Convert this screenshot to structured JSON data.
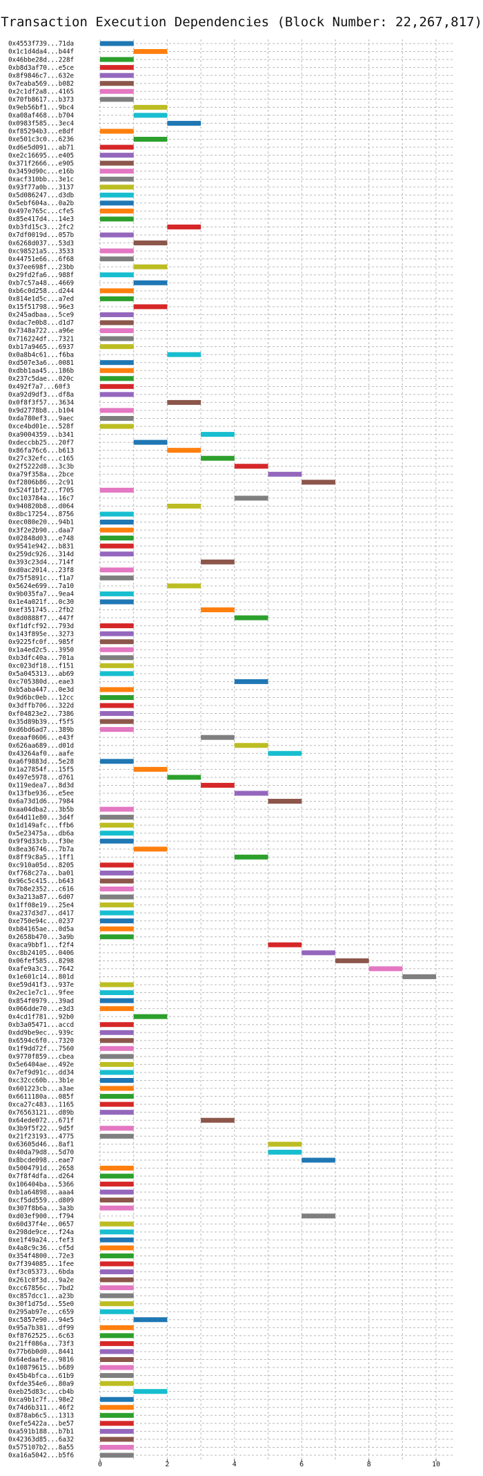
{
  "chart_data": {
    "type": "bar",
    "orientation": "horizontal-gantt",
    "title": "Transaction Execution Dependencies (Block Number: 22,267,817)",
    "xlabel": "",
    "ylabel": "",
    "xlim": [
      0,
      10.5
    ],
    "xticks": [
      0,
      2,
      4,
      6,
      8,
      10
    ],
    "grid": true,
    "palette": [
      "#1f77b4",
      "#ff7f0e",
      "#2ca02c",
      "#d62728",
      "#9467bd",
      "#8c564b",
      "#e377c2",
      "#7f7f7f",
      "#bcbd22",
      "#17becf"
    ],
    "transactions": [
      {
        "label": "0x4553f739...71da",
        "start": 0,
        "end": 1
      },
      {
        "label": "0x1c1d4da4...b44f",
        "start": 1,
        "end": 2
      },
      {
        "label": "0x46bbe28d...228f",
        "start": 0,
        "end": 1
      },
      {
        "label": "0xb8d3af70...e5ce",
        "start": 0,
        "end": 1
      },
      {
        "label": "0x8f9846c7...632e",
        "start": 0,
        "end": 1
      },
      {
        "label": "0x7eaba569...b082",
        "start": 0,
        "end": 1
      },
      {
        "label": "0x2c1df2a8...4165",
        "start": 0,
        "end": 1
      },
      {
        "label": "0x70fb8617...b373",
        "start": 0,
        "end": 1
      },
      {
        "label": "0x9eb56bf1...9bc4",
        "start": 1,
        "end": 2
      },
      {
        "label": "0xa08af468...b704",
        "start": 1,
        "end": 2
      },
      {
        "label": "0x0983f585...3ec4",
        "start": 2,
        "end": 3
      },
      {
        "label": "0xf85294b3...e8df",
        "start": 0,
        "end": 1
      },
      {
        "label": "0xe501c3c0...6236",
        "start": 1,
        "end": 2
      },
      {
        "label": "0xd6e5d091...ab71",
        "start": 0,
        "end": 1
      },
      {
        "label": "0xe2c16695...e405",
        "start": 0,
        "end": 1
      },
      {
        "label": "0x371f2666...e905",
        "start": 0,
        "end": 1
      },
      {
        "label": "0x3459d90c...e16b",
        "start": 0,
        "end": 1
      },
      {
        "label": "0xacf310bb...3e1c",
        "start": 0,
        "end": 1
      },
      {
        "label": "0x93f77a0b...3137",
        "start": 0,
        "end": 1
      },
      {
        "label": "0x5d086247...d3db",
        "start": 0,
        "end": 1
      },
      {
        "label": "0x5ebf604a...0a2b",
        "start": 0,
        "end": 1
      },
      {
        "label": "0x497e765c...cfe5",
        "start": 0,
        "end": 1
      },
      {
        "label": "0x85e417d4...14e3",
        "start": 0,
        "end": 1
      },
      {
        "label": "0xb3fd15c3...2fc2",
        "start": 2,
        "end": 3
      },
      {
        "label": "0x7df0019d...057b",
        "start": 0,
        "end": 1
      },
      {
        "label": "0x6268d037...53d3",
        "start": 1,
        "end": 2
      },
      {
        "label": "0xc98521a5...3533",
        "start": 0,
        "end": 1
      },
      {
        "label": "0x44751e66...6f68",
        "start": 0,
        "end": 1
      },
      {
        "label": "0x37ee698f...23bb",
        "start": 1,
        "end": 2
      },
      {
        "label": "0x29fd2fa6...988f",
        "start": 0,
        "end": 1
      },
      {
        "label": "0xb7c57a48...4669",
        "start": 1,
        "end": 2
      },
      {
        "label": "0xb6c0d258...d244",
        "start": 0,
        "end": 1
      },
      {
        "label": "0x814e1d5c...a7ed",
        "start": 0,
        "end": 1
      },
      {
        "label": "0x15f51798...96e3",
        "start": 1,
        "end": 2
      },
      {
        "label": "0x245adbaa...5ce9",
        "start": 0,
        "end": 1
      },
      {
        "label": "0xdac7e0b8...d1d7",
        "start": 0,
        "end": 1
      },
      {
        "label": "0x7348a722...a96e",
        "start": 0,
        "end": 1
      },
      {
        "label": "0x716224df...7321",
        "start": 0,
        "end": 1
      },
      {
        "label": "0xb17a9465...6937",
        "start": 0,
        "end": 1
      },
      {
        "label": "0x0a8b4c61...f6ba",
        "start": 2,
        "end": 3
      },
      {
        "label": "0xd507e3a6...0081",
        "start": 0,
        "end": 1
      },
      {
        "label": "0xdbb1aa45...186b",
        "start": 0,
        "end": 1
      },
      {
        "label": "0x237c5dae...020c",
        "start": 0,
        "end": 1
      },
      {
        "label": "0x492f7a7...60f3",
        "start": 0,
        "end": 1
      },
      {
        "label": "0xa92d9df3...df8a",
        "start": 0,
        "end": 1
      },
      {
        "label": "0x0f8f3f57...3634",
        "start": 2,
        "end": 3
      },
      {
        "label": "0x9d2778b8...b104",
        "start": 0,
        "end": 1
      },
      {
        "label": "0xda780ef3...9aec",
        "start": 0,
        "end": 1
      },
      {
        "label": "0xce4bd01e...528f",
        "start": 0,
        "end": 1
      },
      {
        "label": "0xa9004359...b341",
        "start": 3,
        "end": 4
      },
      {
        "label": "0xdeccbb25...20f7",
        "start": 1,
        "end": 2
      },
      {
        "label": "0x86fa76c6...b613",
        "start": 2,
        "end": 3
      },
      {
        "label": "0x27c32efc...c165",
        "start": 3,
        "end": 4
      },
      {
        "label": "0x2f5222d8...3c3b",
        "start": 4,
        "end": 5
      },
      {
        "label": "0xa79f358a...2bce",
        "start": 5,
        "end": 6
      },
      {
        "label": "0xf2806b86...2c91",
        "start": 6,
        "end": 7
      },
      {
        "label": "0x524f1bf2...f705",
        "start": 0,
        "end": 1
      },
      {
        "label": "0xc103784a...16c7",
        "start": 4,
        "end": 5
      },
      {
        "label": "0x940820b8...d064",
        "start": 2,
        "end": 3
      },
      {
        "label": "0x8bc17254...8756",
        "start": 0,
        "end": 1
      },
      {
        "label": "0xec080e20...94b1",
        "start": 0,
        "end": 1
      },
      {
        "label": "0x3f2e2b90...daa7",
        "start": 0,
        "end": 1
      },
      {
        "label": "0x02848d03...e748",
        "start": 0,
        "end": 1
      },
      {
        "label": "0x9541e942...b831",
        "start": 0,
        "end": 1
      },
      {
        "label": "0x259dc926...314d",
        "start": 0,
        "end": 1
      },
      {
        "label": "0x393c23d4...714f",
        "start": 3,
        "end": 4
      },
      {
        "label": "0xd0ac2014...23f8",
        "start": 0,
        "end": 1
      },
      {
        "label": "0x75f5891c...f1a7",
        "start": 0,
        "end": 1
      },
      {
        "label": "0x5624e699...7a10",
        "start": 2,
        "end": 3
      },
      {
        "label": "0x9b035fa7...9ea4",
        "start": 0,
        "end": 1
      },
      {
        "label": "0x1e4a021f...0c30",
        "start": 0,
        "end": 1
      },
      {
        "label": "0xef351745...2fb2",
        "start": 3,
        "end": 4
      },
      {
        "label": "0x8d0888f7...447f",
        "start": 4,
        "end": 5
      },
      {
        "label": "0xf1dfcf92...793d",
        "start": 0,
        "end": 1
      },
      {
        "label": "0x143f895e...3273",
        "start": 0,
        "end": 1
      },
      {
        "label": "0x9225fc0f...985f",
        "start": 0,
        "end": 1
      },
      {
        "label": "0x1a4ed2c5...3950",
        "start": 0,
        "end": 1
      },
      {
        "label": "0xb3dfc40a...701a",
        "start": 0,
        "end": 1
      },
      {
        "label": "0xc023df18...f151",
        "start": 0,
        "end": 1
      },
      {
        "label": "0x5a045313...ab69",
        "start": 0,
        "end": 1
      },
      {
        "label": "0xc705380d...eae3",
        "start": 4,
        "end": 5
      },
      {
        "label": "0xb5aba447...0e3d",
        "start": 0,
        "end": 1
      },
      {
        "label": "0x9d6bc0eb...12cc",
        "start": 0,
        "end": 1
      },
      {
        "label": "0x3dffb706...322d",
        "start": 0,
        "end": 1
      },
      {
        "label": "0xf04823e2...7386",
        "start": 0,
        "end": 1
      },
      {
        "label": "0x35d89b39...f5f5",
        "start": 0,
        "end": 1
      },
      {
        "label": "0xd6bd6ad7...389b",
        "start": 0,
        "end": 1
      },
      {
        "label": "0xeaaf0606...e43f",
        "start": 3,
        "end": 4
      },
      {
        "label": "0x626aa689...d01d",
        "start": 4,
        "end": 5
      },
      {
        "label": "0x43264af0...aafe",
        "start": 5,
        "end": 6
      },
      {
        "label": "0xa6f9883d...5e28",
        "start": 0,
        "end": 1
      },
      {
        "label": "0x1a27854f...15f5",
        "start": 1,
        "end": 2
      },
      {
        "label": "0x497e5978...d761",
        "start": 2,
        "end": 3
      },
      {
        "label": "0x119edea7...8d3d",
        "start": 3,
        "end": 4
      },
      {
        "label": "0x13fbe936...e5ee",
        "start": 4,
        "end": 5
      },
      {
        "label": "0x6a73d1d6...7984",
        "start": 5,
        "end": 6
      },
      {
        "label": "0xaa04dba2...3b5b",
        "start": 0,
        "end": 1
      },
      {
        "label": "0x64d11e80...3d4f",
        "start": 0,
        "end": 1
      },
      {
        "label": "0x1d149afc...ffb6",
        "start": 0,
        "end": 1
      },
      {
        "label": "0x5e23475a...db6a",
        "start": 0,
        "end": 1
      },
      {
        "label": "0x9f9d33cb...f30e",
        "start": 0,
        "end": 1
      },
      {
        "label": "0x8ea36746...7b7a",
        "start": 1,
        "end": 2
      },
      {
        "label": "0x8ff9c8a5...1ff1",
        "start": 4,
        "end": 5
      },
      {
        "label": "0xc910a05d...8205",
        "start": 0,
        "end": 1
      },
      {
        "label": "0xf768c27a...ba01",
        "start": 0,
        "end": 1
      },
      {
        "label": "0x96c5c415...b643",
        "start": 0,
        "end": 1
      },
      {
        "label": "0x7b8e2352...c616",
        "start": 0,
        "end": 1
      },
      {
        "label": "0x3a213a87...6d07",
        "start": 0,
        "end": 1
      },
      {
        "label": "0x1ff08e19...25e4",
        "start": 0,
        "end": 1
      },
      {
        "label": "0xa237d3d7...d417",
        "start": 0,
        "end": 1
      },
      {
        "label": "0xe750e94c...0237",
        "start": 0,
        "end": 1
      },
      {
        "label": "0xb84165ae...0d5a",
        "start": 0,
        "end": 1
      },
      {
        "label": "0x2658b470...3a9b",
        "start": 0,
        "end": 1
      },
      {
        "label": "0xaca9bbf1...f2f4",
        "start": 5,
        "end": 6
      },
      {
        "label": "0xc8b24105...0406",
        "start": 6,
        "end": 7
      },
      {
        "label": "0x06fef585...8298",
        "start": 7,
        "end": 8
      },
      {
        "label": "0xafe9a3c3...7642",
        "start": 8,
        "end": 9
      },
      {
        "label": "0x1e601c14...801d",
        "start": 9,
        "end": 10
      },
      {
        "label": "0xe59d41f3...937e",
        "start": 0,
        "end": 1
      },
      {
        "label": "0x2ec1e7c1...9fee",
        "start": 0,
        "end": 1
      },
      {
        "label": "0x854f0979...39ad",
        "start": 0,
        "end": 1
      },
      {
        "label": "0x066dde70...e3d3",
        "start": 0,
        "end": 1
      },
      {
        "label": "0x4cd1f781...92b0",
        "start": 1,
        "end": 2
      },
      {
        "label": "0xb3a05471...accd",
        "start": 0,
        "end": 1
      },
      {
        "label": "0xdd9be9ec...939c",
        "start": 0,
        "end": 1
      },
      {
        "label": "0x6594c6f0...7320",
        "start": 0,
        "end": 1
      },
      {
        "label": "0x1f9dd72f...7560",
        "start": 0,
        "end": 1
      },
      {
        "label": "0x9770f859...cbea",
        "start": 0,
        "end": 1
      },
      {
        "label": "0x5e6404ae...492e",
        "start": 0,
        "end": 1
      },
      {
        "label": "0x7ef9d91c...dd34",
        "start": 0,
        "end": 1
      },
      {
        "label": "0xc32cc60b...3b1e",
        "start": 0,
        "end": 1
      },
      {
        "label": "0x601223cb...a3ae",
        "start": 0,
        "end": 1
      },
      {
        "label": "0x6611180a...085f",
        "start": 0,
        "end": 1
      },
      {
        "label": "0xca27c483...1165",
        "start": 0,
        "end": 1
      },
      {
        "label": "0x76563121...d89b",
        "start": 0,
        "end": 1
      },
      {
        "label": "0x64ede072...671f",
        "start": 3,
        "end": 4
      },
      {
        "label": "0x3b9f5f22...9d5f",
        "start": 0,
        "end": 1
      },
      {
        "label": "0x21f23193...4775",
        "start": 0,
        "end": 1
      },
      {
        "label": "0x63605d46...8af1",
        "start": 5,
        "end": 6
      },
      {
        "label": "0x40da79d8...5d70",
        "start": 5,
        "end": 6
      },
      {
        "label": "0x8bcde098...eae7",
        "start": 6,
        "end": 7
      },
      {
        "label": "0x5004791d...2658",
        "start": 0,
        "end": 1
      },
      {
        "label": "0x7f8f4dfa...d264",
        "start": 0,
        "end": 1
      },
      {
        "label": "0x106404ba...5366",
        "start": 0,
        "end": 1
      },
      {
        "label": "0xb1a64898...aaa4",
        "start": 0,
        "end": 1
      },
      {
        "label": "0xcf5dd559...d809",
        "start": 0,
        "end": 1
      },
      {
        "label": "0x307f8b6a...3a3b",
        "start": 0,
        "end": 1
      },
      {
        "label": "0xd03ef900...f794",
        "start": 6,
        "end": 7
      },
      {
        "label": "0x60d37f4e...0657",
        "start": 0,
        "end": 1
      },
      {
        "label": "0x298de9ce...f24a",
        "start": 0,
        "end": 1
      },
      {
        "label": "0xe1f49a24...fef3",
        "start": 0,
        "end": 1
      },
      {
        "label": "0x4a8c9c36...cf5d",
        "start": 0,
        "end": 1
      },
      {
        "label": "0x354f4800...72e3",
        "start": 0,
        "end": 1
      },
      {
        "label": "0x7f394085...1fee",
        "start": 0,
        "end": 1
      },
      {
        "label": "0xf3c05373...6bda",
        "start": 0,
        "end": 1
      },
      {
        "label": "0x261c0f3d...9a2e",
        "start": 0,
        "end": 1
      },
      {
        "label": "0xcc67856c...7bd2",
        "start": 0,
        "end": 1
      },
      {
        "label": "0xc857dcc1...a23b",
        "start": 0,
        "end": 1
      },
      {
        "label": "0x30f1d75d...55e0",
        "start": 0,
        "end": 1
      },
      {
        "label": "0x295ab97e...c659",
        "start": 0,
        "end": 1
      },
      {
        "label": "0xc5857e90...94e5",
        "start": 1,
        "end": 2
      },
      {
        "label": "0x95a7b381...df99",
        "start": 0,
        "end": 1
      },
      {
        "label": "0xf8762525...6c63",
        "start": 0,
        "end": 1
      },
      {
        "label": "0x21ff086a...73f3",
        "start": 0,
        "end": 1
      },
      {
        "label": "0x77b6b0d0...8441",
        "start": 0,
        "end": 1
      },
      {
        "label": "0x64edaafe...9816",
        "start": 0,
        "end": 1
      },
      {
        "label": "0x10879615...b689",
        "start": 0,
        "end": 1
      },
      {
        "label": "0x45b4bfca...61b9",
        "start": 0,
        "end": 1
      },
      {
        "label": "0xfde354e6...80a9",
        "start": 0,
        "end": 1
      },
      {
        "label": "0xeb25d83c...cb4b",
        "start": 1,
        "end": 2
      },
      {
        "label": "0xca9b1c7f...98e2",
        "start": 0,
        "end": 1
      },
      {
        "label": "0x74d6b311...46f2",
        "start": 0,
        "end": 1
      },
      {
        "label": "0x878ab6c5...1313",
        "start": 0,
        "end": 1
      },
      {
        "label": "0xefe5422a...be57",
        "start": 0,
        "end": 1
      },
      {
        "label": "0xa591b188...b7b1",
        "start": 0,
        "end": 1
      },
      {
        "label": "0x42363d85...6a32",
        "start": 0,
        "end": 1
      },
      {
        "label": "0x575107b2...8a55",
        "start": 0,
        "end": 1
      },
      {
        "label": "0xa16a5042...b5f6",
        "start": 0,
        "end": 1
      }
    ]
  }
}
